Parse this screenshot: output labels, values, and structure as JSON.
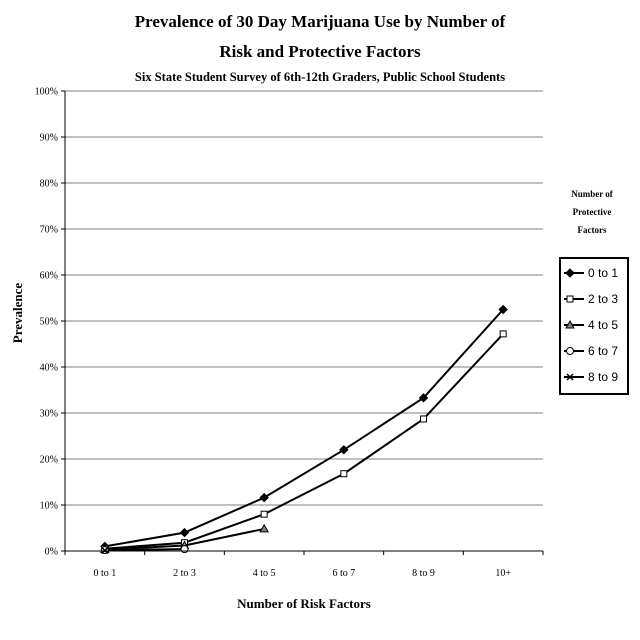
{
  "chart_data": {
    "type": "line",
    "title": "Prevalence of 30 Day Marijuana Use by Number of",
    "title_line2": "Risk and Protective Factors",
    "subtitle": "Six State Student Survey of 6th-12th Graders, Public School Students",
    "xlabel": "Number of Risk Factors",
    "ylabel": "Prevalence",
    "categories": [
      "0 to 1",
      "2 to 3",
      "4 to 5",
      "6 to 7",
      "8 to 9",
      "10+"
    ],
    "ylim": [
      0,
      100
    ],
    "yticks": [
      "0%",
      "10%",
      "20%",
      "30%",
      "40%",
      "50%",
      "60%",
      "70%",
      "80%",
      "90%",
      "100%"
    ],
    "legend_title": [
      "Number of",
      "Protective",
      "Factors"
    ],
    "legend_position": "right",
    "series": [
      {
        "name": "0 to 1",
        "marker": "diamond",
        "values": [
          1.0,
          4.0,
          11.6,
          22.0,
          33.3,
          52.5
        ]
      },
      {
        "name": "2 to 3",
        "marker": "square",
        "values": [
          0.5,
          1.8,
          8.0,
          16.8,
          28.7,
          47.2
        ]
      },
      {
        "name": "4 to 5",
        "marker": "triangle",
        "values": [
          0.3,
          1.2,
          4.8,
          null,
          null,
          null
        ]
      },
      {
        "name": "6 to 7",
        "marker": "circle",
        "values": [
          0.2,
          0.4,
          null,
          null,
          null,
          null
        ]
      },
      {
        "name": "8 to 9",
        "marker": "x",
        "values": [
          0.1,
          null,
          null,
          null,
          null,
          null
        ]
      }
    ]
  }
}
